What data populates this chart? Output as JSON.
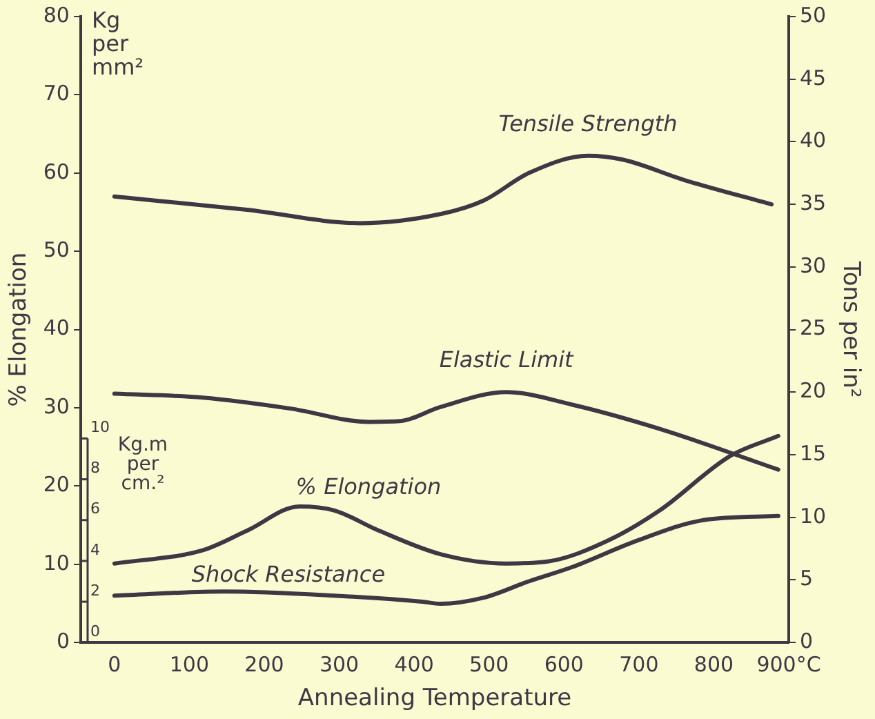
{
  "chart_data": {
    "type": "line",
    "xlabel": "Annealing Temperature",
    "ylabel": "% Elongation",
    "y2label": "Tons per in²",
    "y3label": "Kg.m per cm.²",
    "annotations": [
      "Kg per mm²"
    ],
    "xlim": [
      -45,
      900
    ],
    "xticks": [
      0,
      100,
      200,
      300,
      400,
      500,
      600,
      700,
      800,
      {
        "value": 900,
        "label": "900°C"
      }
    ],
    "ylim": [
      0,
      80
    ],
    "yticks": [
      0,
      10,
      20,
      30,
      40,
      50,
      60,
      70,
      80
    ],
    "y2lim": [
      0,
      50
    ],
    "y2ticks": [
      0,
      5,
      10,
      15,
      20,
      25,
      30,
      35,
      40,
      45,
      50
    ],
    "y3lim": [
      0,
      10
    ],
    "y3ticks": [
      0,
      2,
      4,
      6,
      8,
      10
    ],
    "grid": false,
    "legend": false,
    "marker": "none",
    "line_style": "solid",
    "series": [
      {
        "name": "Tensile Strength",
        "color": "#3d3843",
        "x": [
          0,
          177,
          328,
          437,
          493,
          553,
          632,
          679,
          761,
          877
        ],
        "values": [
          57,
          55.3,
          53.6,
          54.8,
          56.5,
          60,
          62.2,
          61.7,
          59.1,
          56
        ]
      },
      {
        "name": "Elastic Limit",
        "color": "#3d3843",
        "x": [
          0,
          118,
          235,
          340,
          381,
          435,
          523,
          611,
          728,
          886
        ],
        "values": [
          31.8,
          31.3,
          29.9,
          28.2,
          28.3,
          30.1,
          32,
          30.4,
          27.3,
          22.1
        ]
      },
      {
        "name": "% Elongation",
        "color": "#3d3843",
        "x": [
          0,
          118,
          177,
          247,
          293,
          353,
          435,
          523,
          581,
          658,
          728,
          821,
          886
        ],
        "values": [
          10.1,
          11.8,
          14.3,
          17.4,
          16.9,
          14.3,
          11.3,
          10.1,
          10.4,
          13,
          16.9,
          23.8,
          26.4
        ]
      },
      {
        "name": "Shock Resistance",
        "color": "#3d3843",
        "axis": "y3",
        "x": [
          0,
          147,
          293,
          411,
          435,
          493,
          553,
          611,
          698,
          786,
          886
        ],
        "values": [
          2.3,
          2.5,
          2.3,
          2.0,
          1.9,
          2.2,
          3.0,
          3.7,
          5.0,
          6.0,
          6.2
        ]
      }
    ]
  }
}
